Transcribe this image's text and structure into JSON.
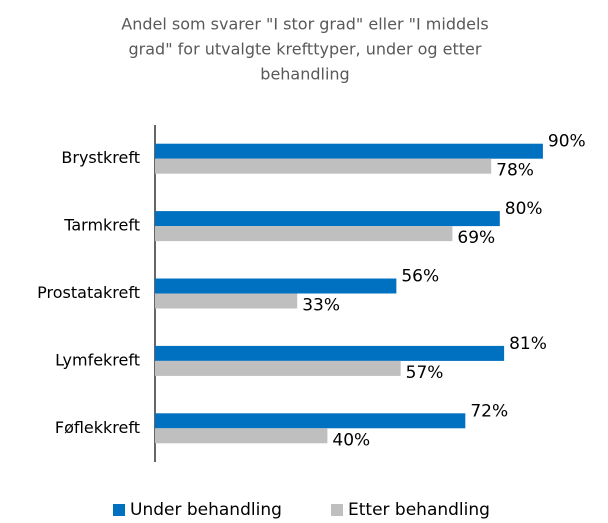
{
  "chart_data": {
    "type": "bar",
    "orientation": "horizontal",
    "title": [
      "Andel som svarer \"I stor grad\" eller \"I middels",
      "grad\" for utvalgte krefttyper, under og etter",
      "behandling"
    ],
    "categories": [
      "Brystkreft",
      "Tarmkreft",
      "Prostatakreft",
      "Lymfekreft",
      "Føflekkreft"
    ],
    "series": [
      {
        "name": "Under behandling",
        "color": "#0070C0",
        "values": [
          90,
          80,
          56,
          81,
          72
        ],
        "value_labels": [
          "90%",
          "80%",
          "56%",
          "81%",
          "72%"
        ]
      },
      {
        "name": "Etter behandling",
        "color": "#BFBFBF",
        "values": [
          78,
          69,
          33,
          57,
          40
        ],
        "value_labels": [
          "78%",
          "69%",
          "33%",
          "57%",
          "40%"
        ]
      }
    ],
    "xlim": [
      0,
      100
    ],
    "legend": "bottom"
  }
}
